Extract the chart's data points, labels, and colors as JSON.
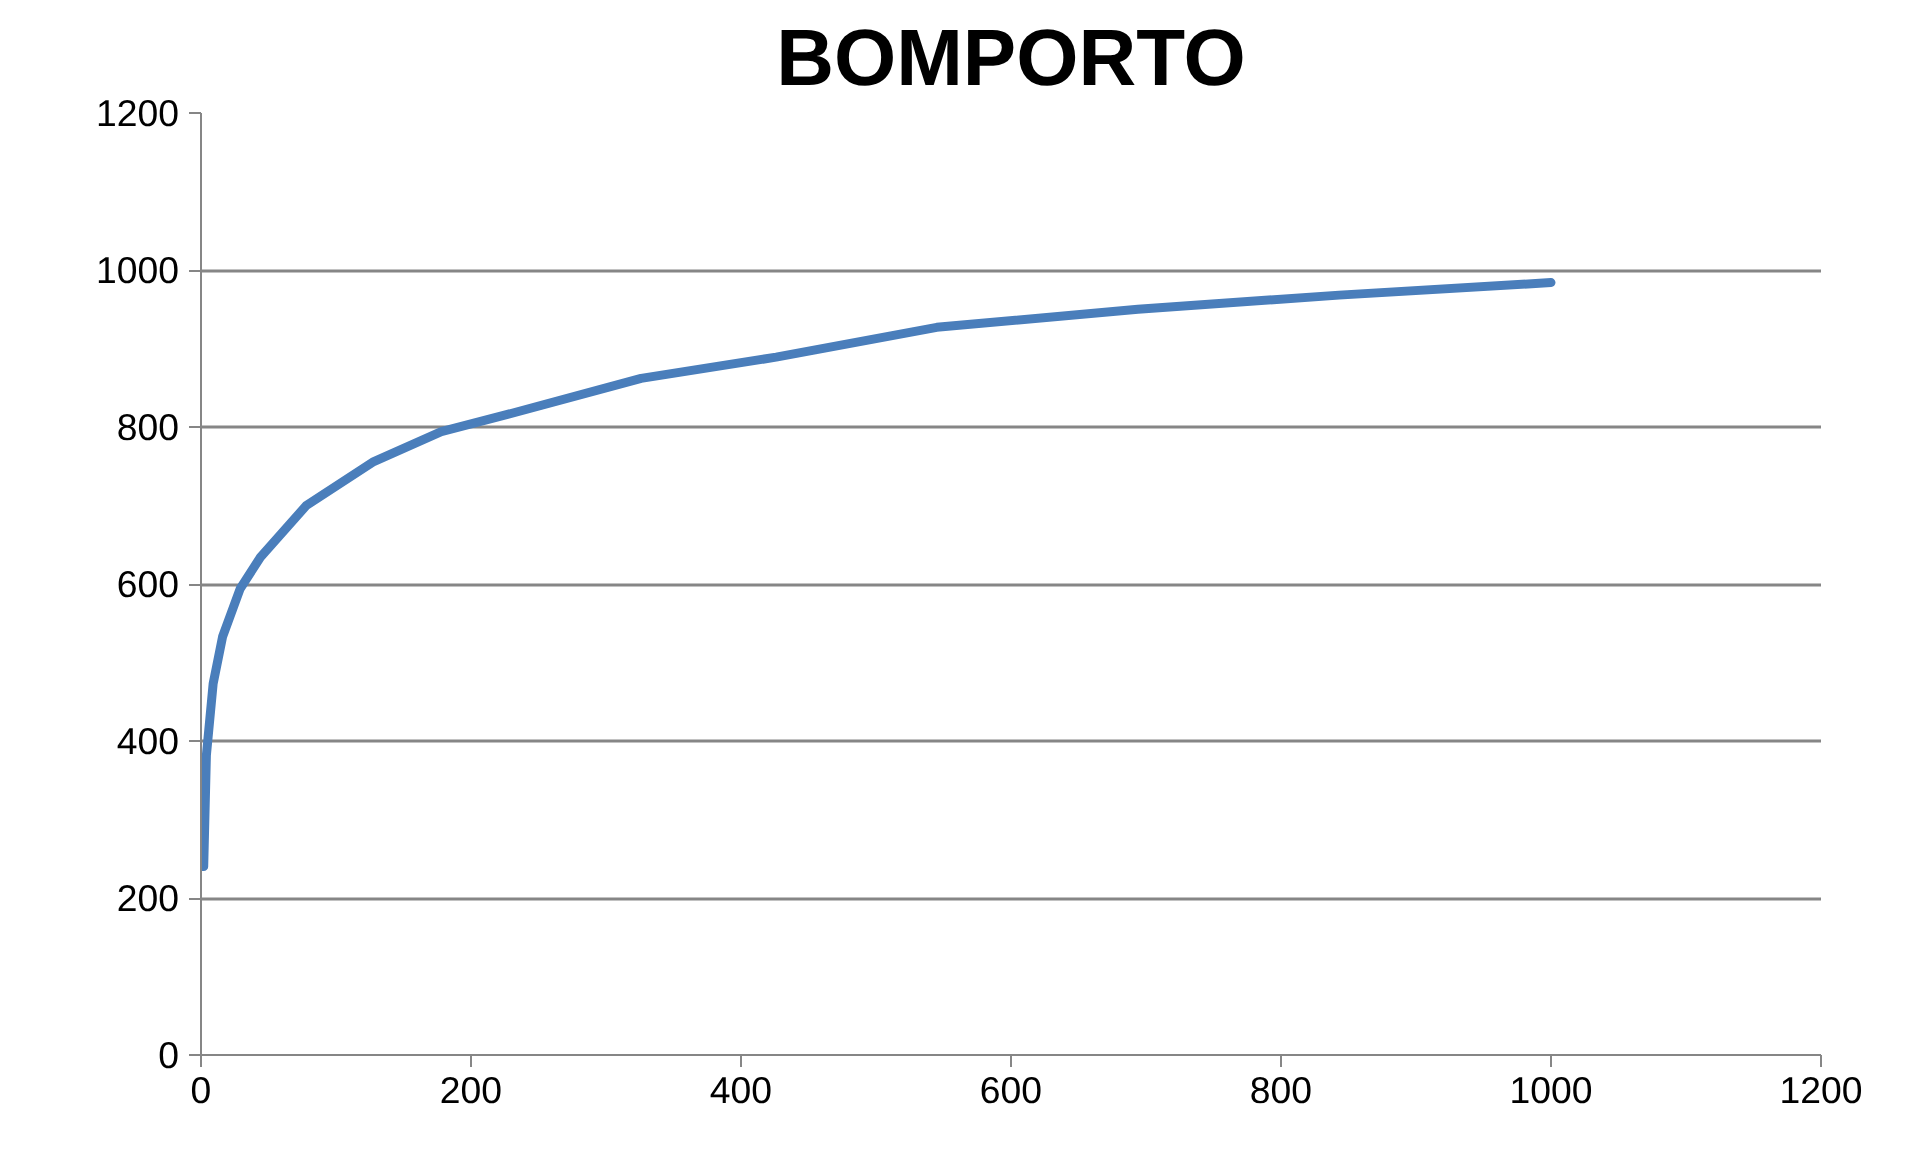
{
  "chart_data": {
    "type": "line",
    "title": "BOMPORTO",
    "series": [
      {
        "color": "#4a7ebb",
        "x": [
          2,
          4,
          9,
          16,
          29,
          44,
          78,
          128,
          178,
          227,
          326,
          426,
          545,
          694,
          843,
          1000
        ],
        "values": [
          240,
          382,
          473,
          533,
          594,
          634,
          700,
          756,
          794,
          816,
          862,
          889,
          927,
          950,
          968,
          984
        ]
      }
    ],
    "xlim": [
      0,
      1200
    ],
    "xticks": [
      0,
      200,
      400,
      600,
      800,
      1000,
      1200
    ],
    "ylim": [
      0,
      1200
    ],
    "yticks": [
      0,
      200,
      400,
      600,
      800,
      1000,
      1200
    ],
    "grid": "y",
    "marker": "none",
    "line_style": "solid"
  }
}
